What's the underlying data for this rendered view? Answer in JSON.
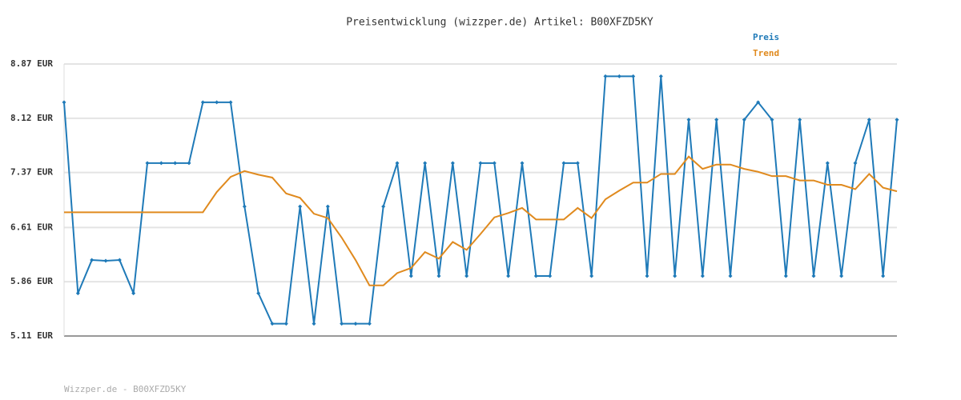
{
  "chart_data": {
    "type": "line",
    "title": "Preisentwicklung (wizzper.de) Artikel: B00XFZD5KY",
    "footer": "Wizzper.de - B00XFZD5KY",
    "categories": [
      null,
      null,
      null,
      null,
      null,
      null,
      null,
      null,
      null,
      null,
      null,
      null,
      null,
      null,
      null,
      null,
      null,
      null,
      null,
      null,
      null,
      null,
      null,
      null,
      null,
      null,
      null,
      null,
      null,
      null,
      null,
      null,
      null,
      null,
      null,
      null,
      null,
      null,
      null,
      null,
      null,
      null,
      null,
      null,
      null,
      null,
      null,
      null,
      null,
      null,
      null,
      null,
      null,
      null,
      null,
      null,
      null,
      null,
      null,
      null,
      null
    ],
    "series": [
      {
        "name": "Preis",
        "color": "#1f7ab8",
        "markers": true,
        "values": [
          8.34,
          5.7,
          6.16,
          6.15,
          6.16,
          5.7,
          7.5,
          7.5,
          7.5,
          7.5,
          8.34,
          8.34,
          8.34,
          6.9,
          5.7,
          5.28,
          5.28,
          6.9,
          5.28,
          6.9,
          5.28,
          5.28,
          5.28,
          6.9,
          7.5,
          5.94,
          7.5,
          5.94,
          7.5,
          5.94,
          7.5,
          7.5,
          5.94,
          7.5,
          5.94,
          5.94,
          7.5,
          7.5,
          5.94,
          8.7,
          8.7,
          8.7,
          5.94,
          8.7,
          5.94,
          8.1,
          5.94,
          8.1,
          5.94,
          8.1,
          8.34,
          8.1,
          5.94,
          8.1,
          5.94,
          7.5,
          5.94,
          7.5,
          8.1,
          5.94,
          8.1
        ]
      },
      {
        "name": "Trend",
        "color": "#e08a1e",
        "markers": false,
        "values": [
          6.82,
          6.82,
          6.82,
          6.82,
          6.82,
          6.82,
          6.82,
          6.82,
          6.82,
          6.82,
          6.82,
          7.1,
          7.31,
          7.39,
          7.34,
          7.3,
          7.08,
          7.02,
          6.8,
          6.74,
          6.47,
          6.16,
          5.81,
          5.81,
          5.98,
          6.05,
          6.27,
          6.18,
          6.41,
          6.3,
          6.52,
          6.75,
          6.81,
          6.88,
          6.72,
          6.72,
          6.72,
          6.88,
          6.74,
          7.0,
          7.12,
          7.23,
          7.23,
          7.35,
          7.35,
          7.59,
          7.42,
          7.48,
          7.48,
          7.42,
          7.38,
          7.32,
          7.32,
          7.26,
          7.26,
          7.2,
          7.2,
          7.14,
          7.35,
          7.16,
          7.11
        ]
      }
    ],
    "ylim": [
      5.11,
      8.87
    ],
    "yticks": [
      {
        "value": 5.11,
        "label": "5.11 EUR"
      },
      {
        "value": 5.86,
        "label": "5.86 EUR"
      },
      {
        "value": 6.61,
        "label": "6.61 EUR"
      },
      {
        "value": 7.37,
        "label": "7.37 EUR"
      },
      {
        "value": 8.12,
        "label": "8.12 EUR"
      },
      {
        "value": 8.87,
        "label": "8.87 EUR"
      }
    ],
    "grid": true
  }
}
